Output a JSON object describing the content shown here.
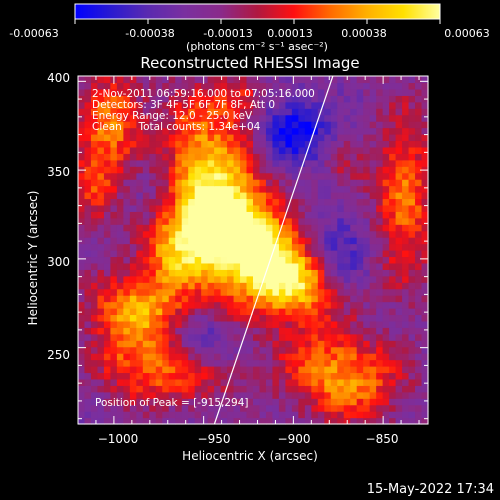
{
  "colorbar": {
    "tick_labels": [
      "-0.00063",
      "-0.00038",
      "-0.00013",
      "0.00013",
      "0.00038",
      "0.00063"
    ],
    "unit_label": "(photons cm⁻² s⁻¹ asec⁻²)",
    "colors": [
      "#0000ff",
      "#2a1ad0",
      "#5a2ab0",
      "#7a2fa0",
      "#8a2a8a",
      "#b01840",
      "#ff1010",
      "#ff6a00",
      "#ffb000",
      "#ffe000",
      "#ffffa0"
    ]
  },
  "chart_data": {
    "type": "heatmap",
    "title": "Reconstructed RHESSI Image",
    "xlabel": "Heliocentric X (arcsec)",
    "ylabel": "Heliocentric Y (arcsec)",
    "xlim": [
      -1020,
      -825
    ],
    "ylim": [
      207,
      403
    ],
    "x_ticks": [
      -1000,
      -950,
      -900,
      -850
    ],
    "y_ticks": [
      250,
      300,
      350,
      400
    ],
    "x_tick_labels": [
      "−1000",
      "−950",
      "−900",
      "−850"
    ],
    "y_tick_labels": [
      "250",
      "300",
      "350",
      "400"
    ],
    "colorbar_range": [
      -0.00063,
      0.00063
    ],
    "limb_line": [
      [
        -944,
        207
      ],
      [
        -878,
        403
      ]
    ],
    "peak_position": [
      -915,
      294
    ],
    "annotations": [
      "2-Nov-2011 06:59:16.000 to 07:05:16.000",
      "Detectors: 3F 4F 5F 6F 7F 8F, Att 0",
      "Energy Range: 12.0 - 25.0 keV",
      "Clean     Total counts: 1.34e+04",
      "Position of Peak = [-915,294]"
    ],
    "intensity_sources": [
      {
        "x": -915,
        "y": 300,
        "sx": 16,
        "sy": 18,
        "amp": 1.0
      },
      {
        "x": -935,
        "y": 330,
        "sx": 14,
        "sy": 28,
        "amp": 0.85
      },
      {
        "x": -950,
        "y": 318,
        "sx": 18,
        "sy": 12,
        "amp": 0.6
      },
      {
        "x": -965,
        "y": 300,
        "sx": 15,
        "sy": 12,
        "amp": 0.6
      },
      {
        "x": -955,
        "y": 355,
        "sx": 12,
        "sy": 30,
        "amp": 0.6
      },
      {
        "x": -1000,
        "y": 380,
        "sx": 14,
        "sy": 18,
        "amp": 0.55
      },
      {
        "x": -1010,
        "y": 345,
        "sx": 10,
        "sy": 20,
        "amp": 0.45
      },
      {
        "x": -985,
        "y": 275,
        "sx": 22,
        "sy": 12,
        "amp": 0.55
      },
      {
        "x": -990,
        "y": 250,
        "sx": 16,
        "sy": 18,
        "amp": 0.5
      },
      {
        "x": -960,
        "y": 235,
        "sx": 20,
        "sy": 12,
        "amp": 0.45
      },
      {
        "x": -930,
        "y": 390,
        "sx": 10,
        "sy": 10,
        "amp": 0.4
      },
      {
        "x": -895,
        "y": 285,
        "sx": 16,
        "sy": 14,
        "amp": 0.6
      },
      {
        "x": -885,
        "y": 240,
        "sx": 18,
        "sy": 18,
        "amp": 0.5
      },
      {
        "x": -860,
        "y": 230,
        "sx": 18,
        "sy": 16,
        "amp": 0.45
      },
      {
        "x": -838,
        "y": 335,
        "sx": 12,
        "sy": 35,
        "amp": 0.6
      },
      {
        "x": -870,
        "y": 350,
        "sx": 8,
        "sy": 10,
        "amp": 0.25
      },
      {
        "x": -900,
        "y": 372,
        "sx": 14,
        "sy": 12,
        "amp": -0.55
      },
      {
        "x": -875,
        "y": 305,
        "sx": 12,
        "sy": 14,
        "amp": -0.4
      },
      {
        "x": -950,
        "y": 252,
        "sx": 10,
        "sy": 10,
        "amp": -0.35
      }
    ]
  },
  "footer": {
    "timestamp": "15-May-2022 17:34"
  }
}
